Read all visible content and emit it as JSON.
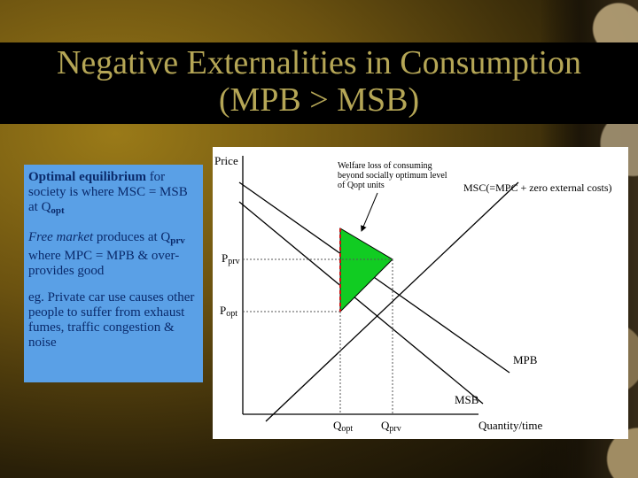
{
  "slide": {
    "title_line1": "Negative Externalities in Consumption",
    "title_line2": "(MPB > MSB)"
  },
  "textbox": {
    "p1_bold": "Optimal equilibrium",
    "p1_rest": " for society is where MSC = MSB at Q",
    "p1_sub": "opt",
    "p2_italic": "Free market",
    "p2_a": " produces at Q",
    "p2_sub": "prv",
    "p2_b": " where MPC = MPB & over-provides good",
    "p3": "eg. Private car use causes other people to suffer from exhaust fumes, traffic congestion & noise"
  },
  "graph": {
    "y_axis_label": "Price",
    "x_axis_label": "Quantity/time",
    "p_prv_main": "P",
    "p_prv_sub": "prv",
    "p_opt_main": "P",
    "p_opt_sub": "opt",
    "q_opt_main": "Q",
    "q_opt_sub": "opt",
    "q_prv_main": "Q",
    "q_prv_sub": "prv",
    "msc_label": "MSC(=MPC + zero external costs)",
    "mpb_label": "MPB",
    "msb_label": "MSB",
    "welfare_note": "Welfare loss of consuming beyond socially optimum level of Qopt units",
    "welfare_color": "#11cc22"
  }
}
